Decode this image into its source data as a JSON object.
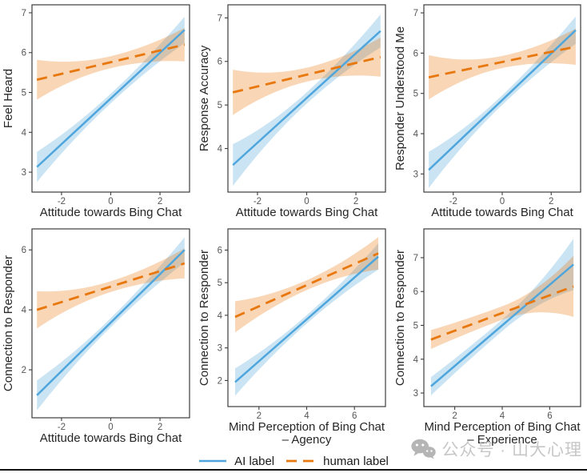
{
  "colors": {
    "ai_line": "#4FA6DC",
    "human_line": "#E8770D",
    "band_opacity": 0.3,
    "panel_border": "#3c3c3c",
    "tick_label": "#555555",
    "axis_title": "#262626",
    "watermark_gray": "#b5b5b5",
    "bottom_rule": "#141414"
  },
  "legend": {
    "position": "bottom-center",
    "ai_label": "AI label",
    "human_label": "human label"
  },
  "watermark": {
    "text": "公众号 · 山大心理"
  },
  "chart_data": [
    {
      "type": "line",
      "title": "",
      "xlabel": "Attitude towards Bing Chat",
      "xlabel2": "",
      "ylabel": "Feel Heard",
      "xlim": [
        -3.2,
        3.2
      ],
      "ylim": [
        2.5,
        7.2
      ],
      "xticks": [
        -2,
        0,
        2
      ],
      "yticks": [
        3,
        4,
        5,
        6,
        7
      ],
      "grid": false,
      "series": [
        {
          "name": "AI label",
          "style": "solid",
          "x": [
            -3,
            3
          ],
          "y": [
            3.13,
            6.57
          ],
          "ci_half": [
            0.38,
            0.12,
            0.33
          ]
        },
        {
          "name": "human label",
          "style": "dashed",
          "x": [
            -3,
            3
          ],
          "y": [
            5.32,
            6.2
          ],
          "ci_half": [
            0.5,
            0.15,
            0.42
          ]
        }
      ]
    },
    {
      "type": "line",
      "title": "",
      "xlabel": "Attitude towards Bing Chat",
      "xlabel2": "",
      "ylabel": "Response Accuracy",
      "xlim": [
        -3.2,
        3.2
      ],
      "ylim": [
        3.0,
        7.3
      ],
      "xticks": [
        -2,
        0,
        2
      ],
      "yticks": [
        4,
        5,
        6,
        7
      ],
      "grid": false,
      "series": [
        {
          "name": "AI label",
          "style": "solid",
          "x": [
            -3,
            3
          ],
          "y": [
            3.62,
            6.7
          ],
          "ci_half": [
            0.48,
            0.13,
            0.38
          ]
        },
        {
          "name": "human label",
          "style": "dashed",
          "x": [
            -3,
            3
          ],
          "y": [
            5.29,
            6.1
          ],
          "ci_half": [
            0.52,
            0.16,
            0.45
          ]
        }
      ]
    },
    {
      "type": "line",
      "title": "",
      "xlabel": "Attitude towards Bing Chat",
      "xlabel2": "",
      "ylabel": "Responder Understood Me",
      "xlim": [
        -3.2,
        3.2
      ],
      "ylim": [
        2.55,
        7.2
      ],
      "xticks": [
        -2,
        0,
        2
      ],
      "yticks": [
        3,
        4,
        5,
        6,
        7
      ],
      "grid": false,
      "series": [
        {
          "name": "AI label",
          "style": "solid",
          "x": [
            -3,
            3
          ],
          "y": [
            3.1,
            6.57
          ],
          "ci_half": [
            0.45,
            0.12,
            0.34
          ]
        },
        {
          "name": "human label",
          "style": "dashed",
          "x": [
            -3,
            3
          ],
          "y": [
            5.4,
            6.16
          ],
          "ci_half": [
            0.55,
            0.15,
            0.45
          ]
        }
      ]
    },
    {
      "type": "line",
      "title": "",
      "xlabel": "Attitude towards Bing Chat",
      "xlabel2": "",
      "ylabel": "Connection to Responder",
      "xlim": [
        -3.2,
        3.2
      ],
      "ylim": [
        0.4,
        6.7
      ],
      "xticks": [
        -2,
        0,
        2
      ],
      "yticks": [
        2,
        4,
        6
      ],
      "grid": false,
      "series": [
        {
          "name": "AI label",
          "style": "solid",
          "x": [
            -3,
            3
          ],
          "y": [
            1.15,
            6.0
          ],
          "ci_half": [
            0.5,
            0.15,
            0.42
          ]
        },
        {
          "name": "human label",
          "style": "dashed",
          "x": [
            -3,
            3
          ],
          "y": [
            4.0,
            5.55
          ],
          "ci_half": [
            0.62,
            0.18,
            0.5
          ]
        }
      ]
    },
    {
      "type": "line",
      "title": "",
      "xlabel": "Mind Perception of Bing Chat",
      "xlabel2": "– Agency",
      "ylabel": "Connection to Responder",
      "xlim": [
        0.7,
        7.3
      ],
      "ylim": [
        1.2,
        6.65
      ],
      "xticks": [
        2,
        4,
        6
      ],
      "yticks": [
        2,
        3,
        4,
        5,
        6
      ],
      "grid": false,
      "series": [
        {
          "name": "AI label",
          "style": "solid",
          "x": [
            1,
            7
          ],
          "y": [
            1.95,
            5.8
          ],
          "ci_half": [
            0.42,
            0.13,
            0.4
          ]
        },
        {
          "name": "human label",
          "style": "dashed",
          "x": [
            1,
            7
          ],
          "y": [
            3.95,
            5.9
          ],
          "ci_half": [
            0.48,
            0.15,
            0.5
          ]
        }
      ]
    },
    {
      "type": "line",
      "title": "",
      "xlabel": "Mind Perception of Bing Chat",
      "xlabel2": "– Experience",
      "ylabel": "Connection to Responder",
      "xlim": [
        0.7,
        7.3
      ],
      "ylim": [
        2.6,
        7.85
      ],
      "xticks": [
        2,
        4,
        6
      ],
      "yticks": [
        3,
        4,
        5,
        6,
        7
      ],
      "grid": false,
      "series": [
        {
          "name": "AI label",
          "style": "solid",
          "x": [
            1,
            7
          ],
          "y": [
            3.2,
            6.8
          ],
          "ci_half": [
            0.27,
            0.17,
            0.76
          ]
        },
        {
          "name": "human label",
          "style": "dashed",
          "x": [
            1,
            7
          ],
          "y": [
            4.58,
            6.15
          ],
          "ci_half": [
            0.28,
            0.2,
            0.9
          ]
        }
      ]
    }
  ]
}
